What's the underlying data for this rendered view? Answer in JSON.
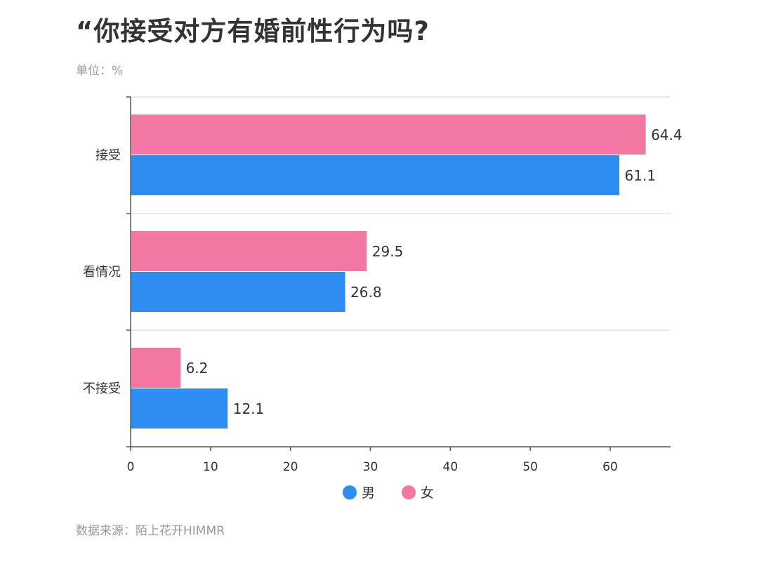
{
  "header": {
    "title": "“你接受对方有婚前性行为吗?",
    "unit": "单位：%"
  },
  "footer": {
    "source": "数据来源：陌上花开HIMMR"
  },
  "colors": {
    "male": "#2f8cf0",
    "female": "#f277a2",
    "axis": "#555555",
    "grid": "#d9d9d9"
  },
  "chart_data": {
    "type": "bar",
    "orientation": "horizontal",
    "title": "“你接受对方有婚前性行为吗?",
    "subtitle": "单位：%",
    "categories": [
      "接受",
      "看情况",
      "不接受"
    ],
    "series": [
      {
        "name": "女",
        "color": "#f277a2",
        "values": [
          64.4,
          29.5,
          6.2
        ]
      },
      {
        "name": "男",
        "color": "#2f8cf0",
        "values": [
          61.1,
          26.8,
          12.1
        ]
      }
    ],
    "xlim": [
      0,
      70
    ],
    "xticks": [
      0,
      10,
      20,
      30,
      40,
      50,
      60
    ],
    "legend": {
      "placement": "bottom-center",
      "items": [
        {
          "name": "男",
          "color": "#2f8cf0"
        },
        {
          "name": "女",
          "color": "#f277a2"
        }
      ]
    },
    "grid": "horizontal separators",
    "source": "数据来源：陌上花开HIMMR"
  }
}
